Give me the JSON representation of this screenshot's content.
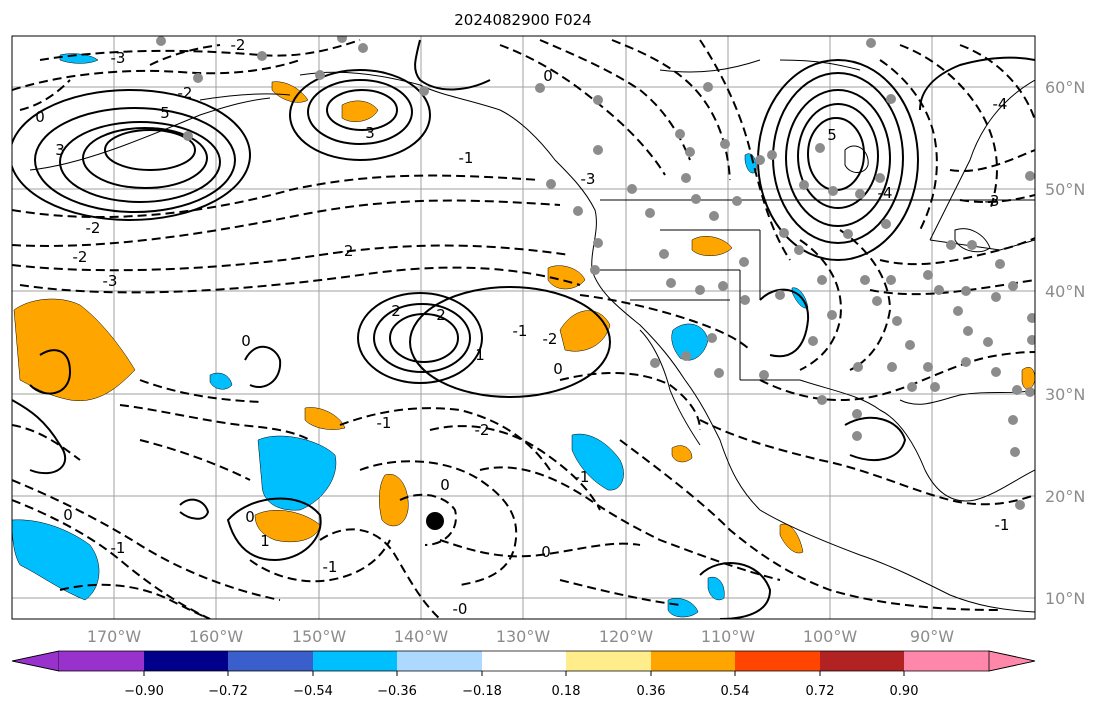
{
  "title": "2024082900 F024",
  "map": {
    "lon_range": [
      -180,
      -80
    ],
    "lat_range": [
      7.5,
      65
    ],
    "lon_ticks": [
      "170°W",
      "160°W",
      "150°W",
      "140°W",
      "130°W",
      "120°W",
      "110°W",
      "100°W",
      "90°W"
    ],
    "lat_ticks": [
      "60°N",
      "50°N",
      "40°N",
      "30°N",
      "20°N",
      "10°N"
    ],
    "gridlines": true,
    "contour_labels": [
      "-2",
      "-3",
      "-2",
      "0",
      "5",
      "3",
      "-2",
      "0",
      "-1",
      "5",
      "3",
      "-3",
      "-4",
      "-2",
      "-2",
      "-3",
      "2",
      "2",
      "1",
      "-1",
      "0",
      "0",
      "-2",
      "-1",
      "0",
      "-2",
      "0",
      "-1",
      "-1",
      "0",
      "1",
      "-1",
      "0",
      "-0",
      "-4",
      "-3",
      "-1"
    ],
    "marker": "large black dot near 139°W, 17.5°N",
    "colors": {
      "positive_shading": "#ffa500",
      "negative_shading": "#00bfff",
      "station_dots": "#8c8c8c",
      "contour": "#000000"
    }
  },
  "colorbar": {
    "tick_labels": [
      "−0.90",
      "−0.72",
      "−0.54",
      "−0.36",
      "−0.18",
      "0.18",
      "0.36",
      "0.54",
      "0.72",
      "0.90"
    ],
    "colors": [
      "#9932cc",
      "#00008b",
      "#3a5fcd",
      "#00bfff",
      "#add8ff",
      "#ffffff",
      "#ffec8b",
      "#ffa500",
      "#ff4500",
      "#b22222",
      "#ff88aa"
    ],
    "extend": "both"
  }
}
